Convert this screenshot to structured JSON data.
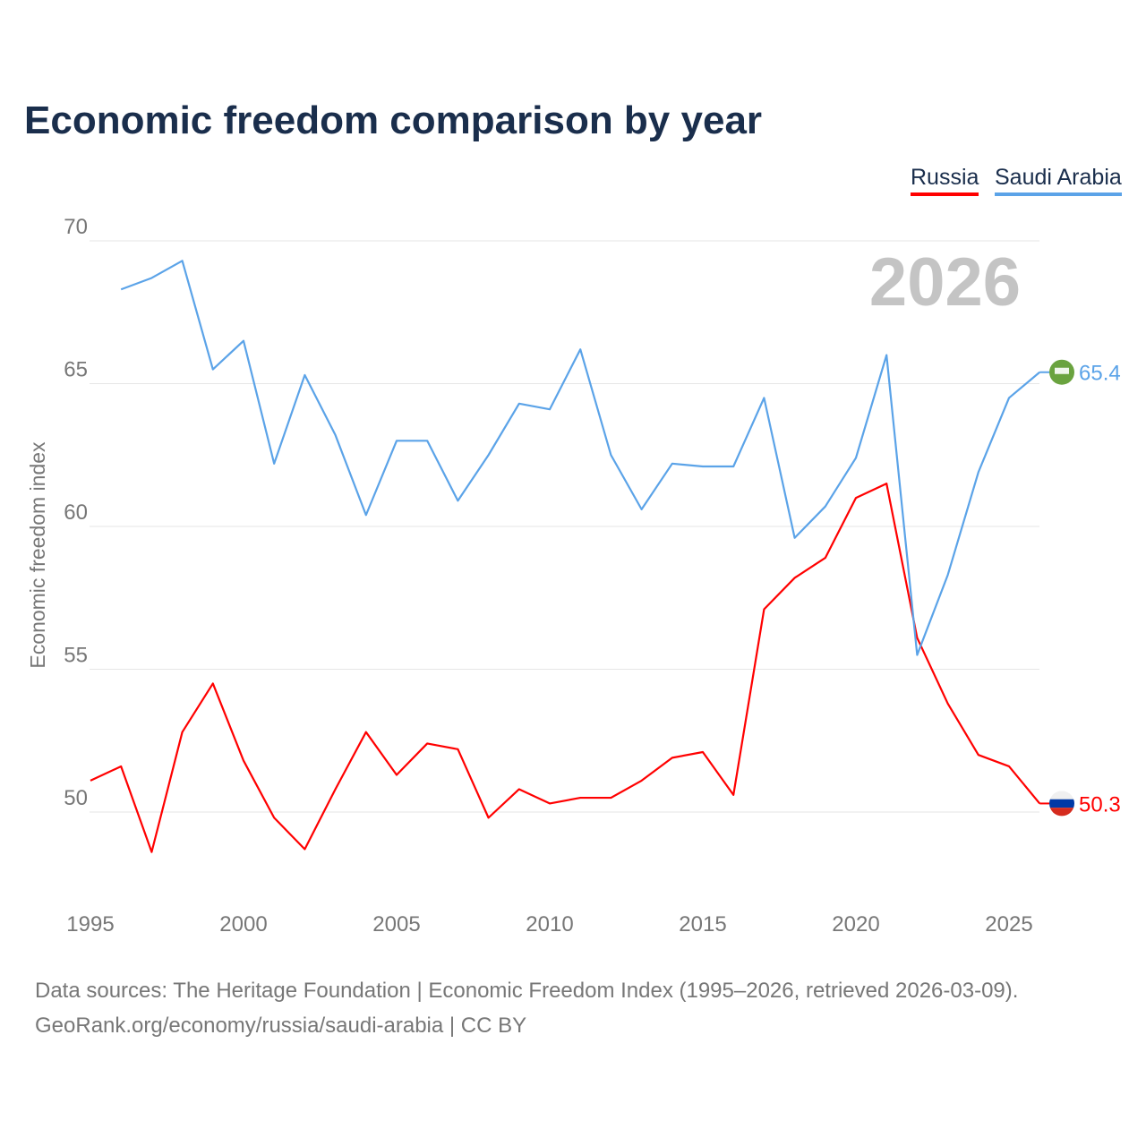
{
  "chart_data": {
    "type": "line",
    "title": "Economic freedom comparison by year",
    "xlabel": "",
    "ylabel": "Economic freedom index",
    "xlim": [
      1995,
      2026
    ],
    "ylim": [
      47,
      71
    ],
    "x_ticks": [
      1995,
      2000,
      2005,
      2010,
      2015,
      2020,
      2025
    ],
    "y_ticks": [
      50,
      55,
      60,
      65,
      70
    ],
    "grid": true,
    "legend_position": "top-right",
    "year_watermark": "2026",
    "series": [
      {
        "name": "Russia",
        "color": "#ff0000",
        "end_label": "50.3",
        "x": [
          1995,
          1996,
          1997,
          1998,
          1999,
          2000,
          2001,
          2002,
          2003,
          2004,
          2005,
          2006,
          2007,
          2008,
          2009,
          2010,
          2011,
          2012,
          2013,
          2014,
          2015,
          2016,
          2017,
          2018,
          2019,
          2020,
          2021,
          2022,
          2023,
          2024,
          2025,
          2026
        ],
        "values": [
          51.1,
          51.6,
          48.6,
          52.8,
          54.5,
          51.8,
          49.8,
          48.7,
          50.8,
          52.8,
          51.3,
          52.4,
          52.2,
          49.8,
          50.8,
          50.3,
          50.5,
          50.5,
          51.1,
          51.9,
          52.1,
          50.6,
          57.1,
          58.2,
          58.9,
          61.0,
          61.5,
          56.1,
          53.8,
          52.0,
          51.6,
          50.3
        ]
      },
      {
        "name": "Saudi Arabia",
        "color": "#5ba3e8",
        "end_label": "65.4",
        "x": [
          1996,
          1997,
          1998,
          1999,
          2000,
          2001,
          2002,
          2003,
          2004,
          2005,
          2006,
          2007,
          2008,
          2009,
          2010,
          2011,
          2012,
          2013,
          2014,
          2015,
          2016,
          2017,
          2018,
          2019,
          2020,
          2021,
          2022,
          2023,
          2024,
          2025,
          2026
        ],
        "values": [
          68.3,
          68.7,
          69.3,
          65.5,
          66.5,
          62.2,
          65.3,
          63.2,
          60.4,
          63.0,
          63.0,
          60.9,
          62.5,
          64.3,
          64.1,
          66.2,
          62.5,
          60.6,
          62.2,
          62.1,
          62.1,
          64.5,
          59.6,
          60.7,
          62.4,
          66.0,
          55.5,
          58.3,
          61.9,
          64.5,
          65.4
        ]
      }
    ]
  },
  "footer": {
    "line1": "Data sources: The Heritage Foundation | Economic Freedom Index (1995–2026, retrieved 2026-03-09).",
    "line2": "GeoRank.org/economy/russia/saudi-arabia | CC BY"
  }
}
